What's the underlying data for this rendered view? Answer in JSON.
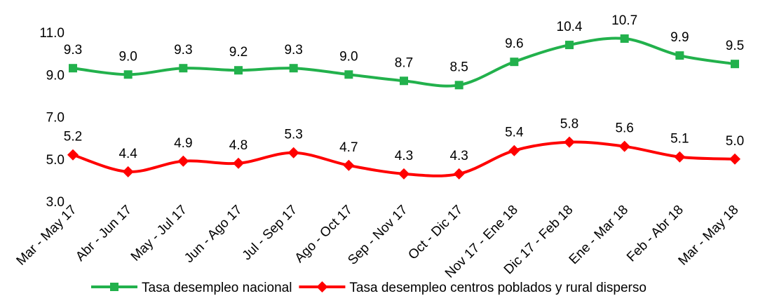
{
  "chart_data": {
    "type": "line",
    "categories": [
      "Mar - May 17",
      "Abr - Jun 17",
      "May - Jul 17",
      "Jun - Ago 17",
      "Jul - Sep 17",
      "Ago - Oct 17",
      "Sep - Nov 17",
      "Oct - Dic  17",
      "Nov 17 - Ene 18",
      "Dic 17 - Feb 18",
      "Ene - Mar 18",
      "Feb - Abr 18",
      "Mar - May 18"
    ],
    "series": [
      {
        "name": "Tasa desempleo nacional",
        "color": "#22b14c",
        "marker": "square",
        "values": [
          9.3,
          9.0,
          9.3,
          9.2,
          9.3,
          9.0,
          8.7,
          8.5,
          9.6,
          10.4,
          10.7,
          9.9,
          9.5
        ],
        "value_labels": [
          "9.3",
          "9.0",
          "9.3",
          "9.2",
          "9.3",
          "9.0",
          "8.7",
          "8.5",
          "9.6",
          "10.4",
          "10.7",
          "9.9",
          "9.5"
        ]
      },
      {
        "name": "Tasa desempleo centros poblados y rural disperso",
        "color": "#ff0000",
        "marker": "diamond",
        "values": [
          5.2,
          4.4,
          4.9,
          4.8,
          5.3,
          4.7,
          4.3,
          4.3,
          5.4,
          5.8,
          5.6,
          5.1,
          5.0
        ],
        "value_labels": [
          "5.2",
          "4.4",
          "4.9",
          "4.8",
          "5.3",
          "4.7",
          "4.3",
          "4.3",
          "5.4",
          "5.8",
          "5.6",
          "5.1",
          "5.0"
        ]
      }
    ],
    "ylim": [
      3,
      11
    ],
    "yticks": [
      {
        "value": 3,
        "label": "3.0"
      },
      {
        "value": 5,
        "label": "5.0"
      },
      {
        "value": 7,
        "label": "7.0"
      },
      {
        "value": 9,
        "label": "9.0"
      },
      {
        "value": 11,
        "label": "11.0"
      }
    ],
    "grid": false,
    "smooth": true,
    "legend": "bottom"
  }
}
